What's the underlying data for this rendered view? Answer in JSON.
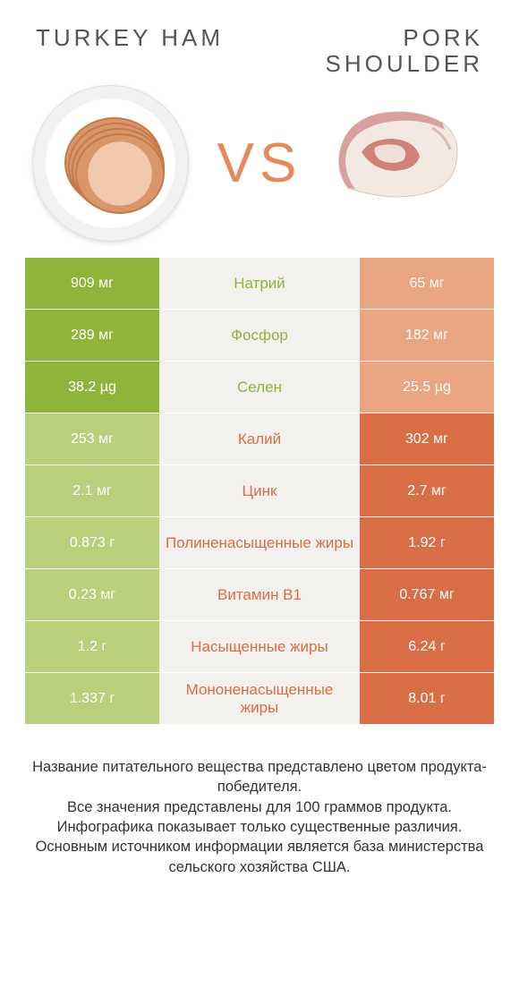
{
  "colors": {
    "green": "#8fb43a",
    "winner_green": "#8fb43a",
    "loser_green": "#b8cf7c",
    "orange": "#e58a5a",
    "winner_orange": "#d96e46",
    "loser_orange": "#eaa581",
    "mid_bg": "#f3f1ee",
    "vs_color": "#e58a5a"
  },
  "header": {
    "left": "TURKEY HAM",
    "right_line1": "PORK",
    "right_line2": "SHOULDER"
  },
  "vs_label": "VS",
  "rows": [
    {
      "label": "Натрий",
      "left": "909 мг",
      "right": "65 мг",
      "winner": "left"
    },
    {
      "label": "Фосфор",
      "left": "289 мг",
      "right": "182 мг",
      "winner": "left"
    },
    {
      "label": "Селен",
      "left": "38.2 µg",
      "right": "25.5 µg",
      "winner": "left"
    },
    {
      "label": "Калий",
      "left": "253 мг",
      "right": "302 мг",
      "winner": "right"
    },
    {
      "label": "Цинк",
      "left": "2.1 мг",
      "right": "2.7 мг",
      "winner": "right"
    },
    {
      "label": "Полиненасыщенные жиры",
      "left": "0.873 г",
      "right": "1.92 г",
      "winner": "right"
    },
    {
      "label": "Витамин B1",
      "left": "0.23 мг",
      "right": "0.767 мг",
      "winner": "right"
    },
    {
      "label": "Насыщенные жиры",
      "left": "1.2 г",
      "right": "6.24 г",
      "winner": "right"
    },
    {
      "label": "Мононенасыщенные жиры",
      "left": "1.337 г",
      "right": "8.01 г",
      "winner": "right"
    }
  ],
  "footer": {
    "line1": "Название питательного вещества представлено цветом продукта-победителя.",
    "line2": "Все значения представлены для 100 граммов продукта.",
    "line3": "Инфографика показывает только существенные различия.",
    "line4": "Основным источником информации является база министерства сельского хозяйства США."
  }
}
